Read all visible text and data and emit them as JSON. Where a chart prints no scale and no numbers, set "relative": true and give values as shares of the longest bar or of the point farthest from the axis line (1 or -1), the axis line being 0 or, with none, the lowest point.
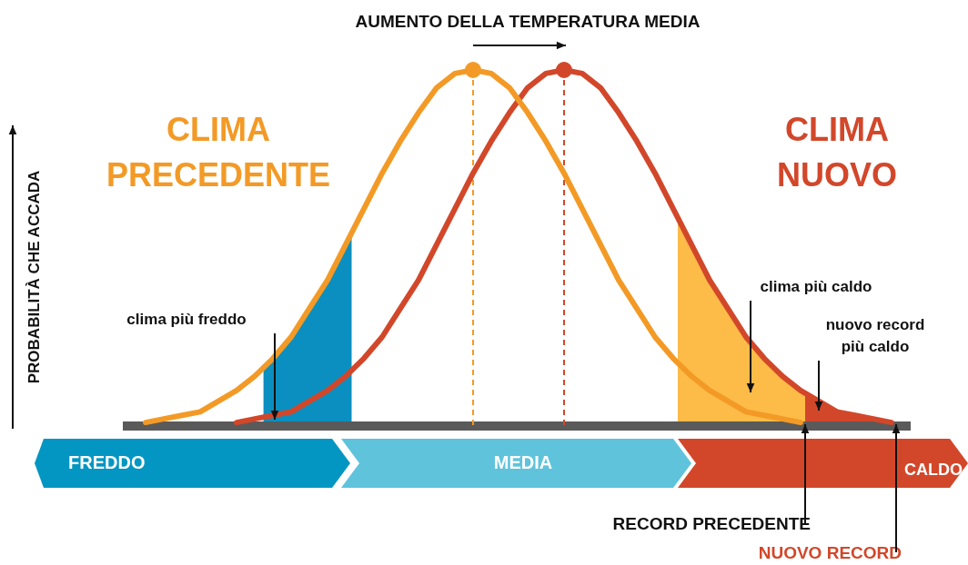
{
  "chart_data": {
    "type": "line",
    "title": "AUMENTO DELLA TEMPERATURA MEDIA",
    "relative": true,
    "legend": false,
    "categories": [
      null,
      null,
      null,
      null,
      null,
      null,
      null,
      null,
      null,
      null,
      null,
      null,
      null,
      null,
      null,
      null,
      null,
      null,
      null,
      null,
      null,
      null,
      null,
      null,
      null,
      null,
      null,
      null,
      null,
      null,
      null,
      null,
      null,
      null,
      null,
      null,
      null,
      null,
      null,
      null,
      null,
      null,
      null,
      null
    ],
    "series": [
      {
        "name": "CLIMA PRECEDENTE",
        "color": "#f39a26",
        "values": [
          null,
          0.01,
          0.02,
          0.03,
          0.04,
          0.07,
          0.1,
          0.14,
          0.19,
          0.25,
          0.33,
          0.41,
          0.51,
          0.61,
          0.71,
          0.8,
          0.88,
          0.95,
          0.99,
          1,
          0.99,
          0.95,
          0.88,
          0.8,
          0.71,
          0.61,
          0.51,
          0.41,
          0.33,
          0.25,
          0.19,
          0.14,
          0.1,
          0.07,
          0.04,
          0.03,
          0.02,
          0.01,
          null,
          null,
          null,
          null,
          null,
          null
        ]
      },
      {
        "name": "CLIMA NUOVO",
        "color": "#d2472a",
        "values": [
          null,
          null,
          null,
          null,
          null,
          null,
          0.01,
          0.02,
          0.03,
          0.04,
          0.07,
          0.1,
          0.14,
          0.19,
          0.25,
          0.33,
          0.41,
          0.51,
          0.61,
          0.71,
          0.8,
          0.88,
          0.95,
          0.99,
          1,
          0.99,
          0.95,
          0.88,
          0.8,
          0.71,
          0.61,
          0.51,
          0.41,
          0.33,
          0.25,
          0.19,
          0.14,
          0.1,
          0.07,
          0.04,
          0.03,
          0.02,
          0.01,
          null
        ]
      }
    ],
    "annotations": [
      "clima più freddo",
      "clima più caldo",
      "nuovo record più caldo",
      "RECORD PRECEDENTE",
      "NUOVO RECORD",
      "FREDDO",
      "MEDIA",
      "CALDO",
      "PROBABILITÀ CHE ACCADA"
    ]
  }
}
